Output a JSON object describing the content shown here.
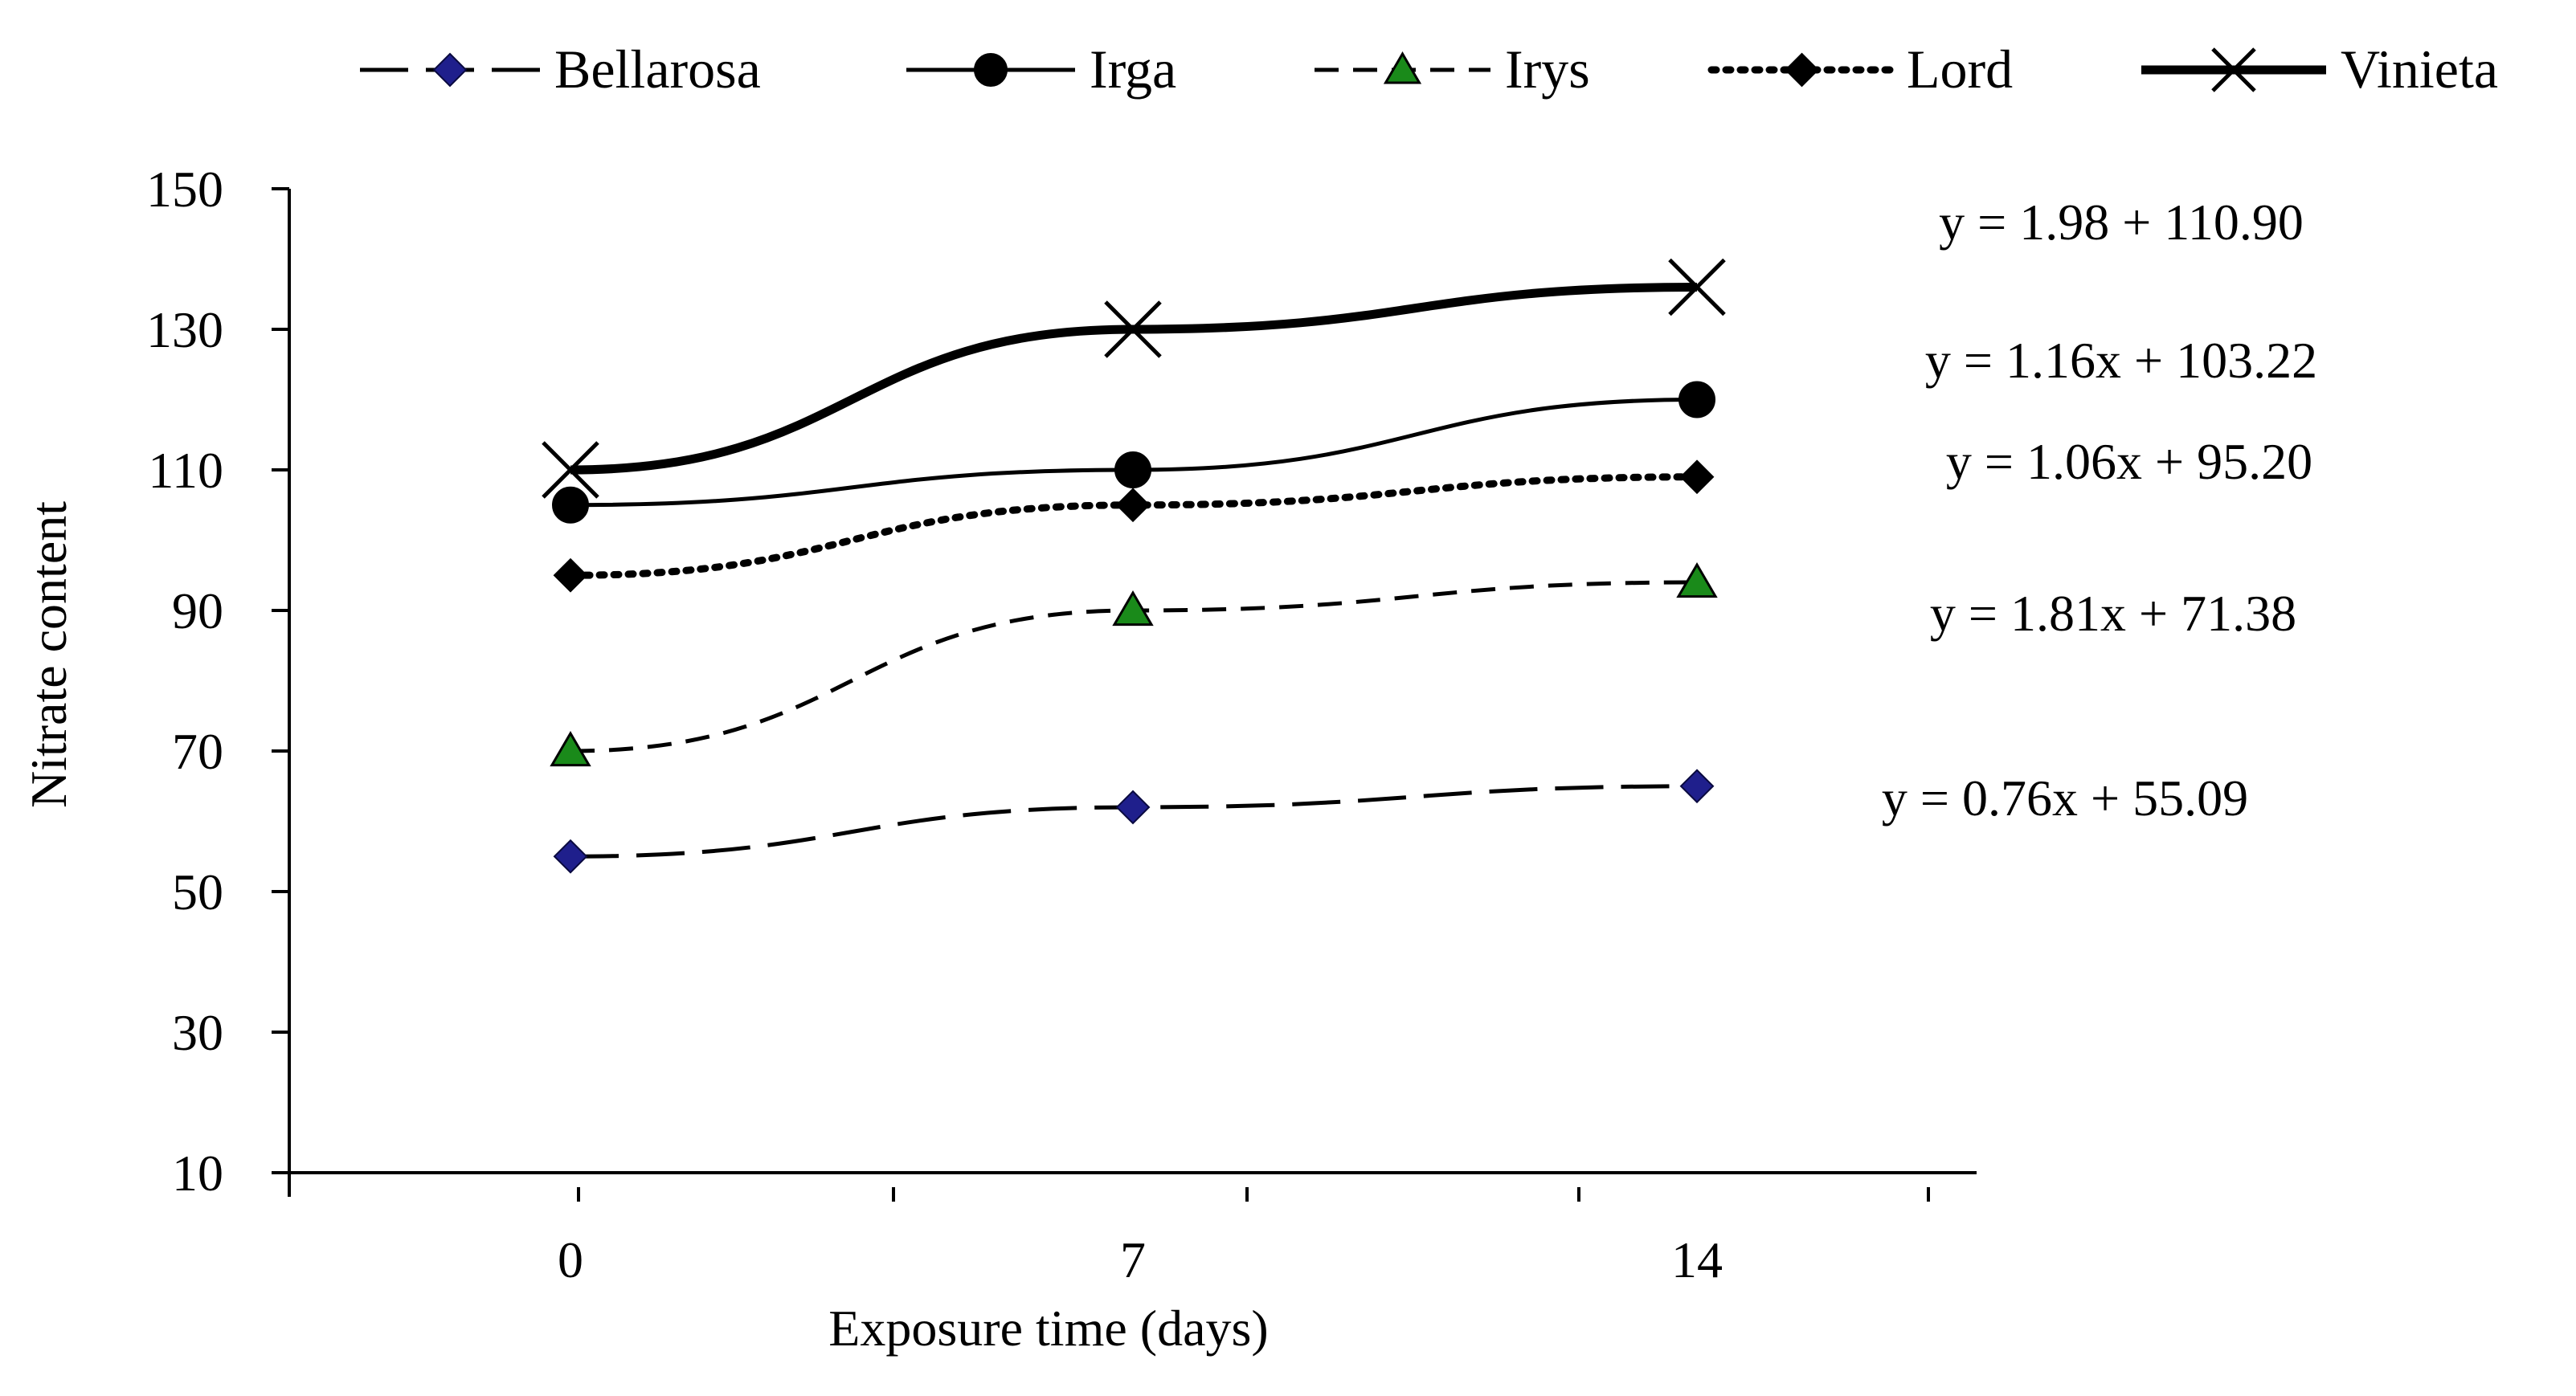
{
  "chart_data": {
    "type": "line",
    "xlabel": "Exposure time (days)",
    "ylabel": "Nitrate content",
    "x": [
      0,
      7,
      14
    ],
    "x_ticks": [
      0,
      7,
      14
    ],
    "ylim": [
      10,
      150
    ],
    "y_ticks": [
      10,
      30,
      50,
      70,
      90,
      110,
      130,
      150
    ],
    "grid": false,
    "legend_position": "top",
    "series": [
      {
        "name": "Bellarosa",
        "values": [
          55,
          62,
          65
        ],
        "color": "#1f1f8c",
        "marker": "diamond",
        "line_style": "long-dash",
        "equation": "y = 0.76x + 55.09"
      },
      {
        "name": "Irga",
        "values": [
          105,
          110,
          120
        ],
        "color": "#000000",
        "marker": "circle",
        "line_style": "solid",
        "equation": "y = 1.16x + 103.22"
      },
      {
        "name": "Irys",
        "values": [
          70,
          90,
          94
        ],
        "color": "#1a8a1a",
        "marker": "triangle",
        "line_style": "dash",
        "equation": "y = 1.81x + 71.38"
      },
      {
        "name": "Lord",
        "values": [
          95,
          105,
          109
        ],
        "color": "#000000",
        "marker": "diamond",
        "line_style": "dotted",
        "equation": "y = 1.06x + 95.20"
      },
      {
        "name": "Vinieta",
        "values": [
          110,
          130,
          136
        ],
        "color": "#000000",
        "marker": "x",
        "line_style": "thick-solid",
        "equation": "y = 1.98 + 110.90"
      }
    ]
  }
}
